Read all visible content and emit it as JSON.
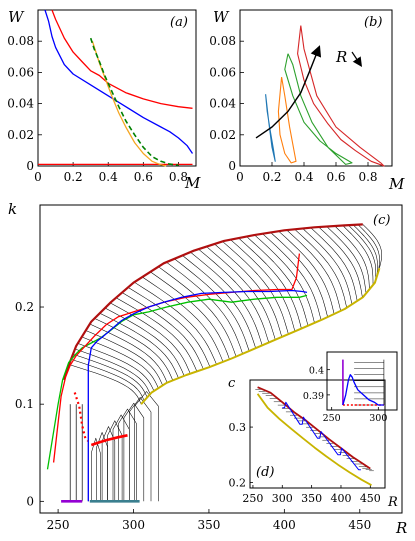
{
  "chart_data": [
    {
      "id": "a",
      "type": "line",
      "panel_label": "(a)",
      "xlabel": "M",
      "ylabel": "W",
      "xlim": [
        0,
        0.9
      ],
      "ylim": [
        0,
        0.1
      ],
      "xticks": [
        0,
        0.2,
        0.4,
        0.6,
        0.8
      ],
      "xtick_labels": [
        "0",
        "0.2",
        "0.4",
        "0.6",
        "0.8"
      ],
      "yticks": [
        0,
        0.02,
        0.04,
        0.06,
        0.08
      ],
      "ytick_labels": [
        "0",
        "0.02",
        "0.04",
        "0.06",
        "0.08"
      ],
      "series": [
        {
          "color": "#0000ff",
          "style": "solid",
          "x": [
            0.04,
            0.06,
            0.08,
            0.1,
            0.15,
            0.2,
            0.3,
            0.4,
            0.5,
            0.6,
            0.7,
            0.75,
            0.8,
            0.85,
            0.88
          ],
          "y": [
            0.1,
            0.093,
            0.083,
            0.076,
            0.065,
            0.059,
            0.052,
            0.045,
            0.038,
            0.031,
            0.025,
            0.022,
            0.018,
            0.013,
            0.008
          ]
        },
        {
          "color": "#ff0000",
          "style": "solid",
          "x": [
            0.08,
            0.1,
            0.15,
            0.2,
            0.25,
            0.3,
            0.35,
            0.4,
            0.5,
            0.6,
            0.7,
            0.8,
            0.88
          ],
          "y": [
            0.1,
            0.094,
            0.082,
            0.073,
            0.067,
            0.061,
            0.058,
            0.053,
            0.047,
            0.043,
            0.04,
            0.038,
            0.037
          ]
        },
        {
          "color": "#ff0000",
          "style": "solid",
          "x": [
            0,
            0.88
          ],
          "y": [
            0.001,
            0.001
          ]
        },
        {
          "color": "#f5a623",
          "style": "solid",
          "x": [
            0.31,
            0.33,
            0.35,
            0.38,
            0.42,
            0.46,
            0.5,
            0.55,
            0.6,
            0.65,
            0.7,
            0.73
          ],
          "y": [
            0.08,
            0.073,
            0.066,
            0.057,
            0.045,
            0.034,
            0.025,
            0.015,
            0.008,
            0.003,
            0.0008,
            0.0
          ]
        },
        {
          "color": "#008000",
          "style": "dashed",
          "x": [
            0.3,
            0.32,
            0.35,
            0.38,
            0.42,
            0.46,
            0.5,
            0.55,
            0.6,
            0.65,
            0.7,
            0.75,
            0.8
          ],
          "y": [
            0.082,
            0.075,
            0.067,
            0.058,
            0.048,
            0.038,
            0.029,
            0.02,
            0.012,
            0.006,
            0.003,
            0.0012,
            0.0005
          ]
        }
      ]
    },
    {
      "id": "b",
      "type": "line",
      "panel_label": "(b)",
      "xlabel": "M",
      "ylabel": "W",
      "xlim": [
        0,
        0.95
      ],
      "ylim": [
        0,
        0.1
      ],
      "xticks": [
        0,
        0.2,
        0.4,
        0.6,
        0.8
      ],
      "xtick_labels": [
        "0",
        "0.2",
        "0.4",
        "0.6",
        "0.8"
      ],
      "yticks": [
        0,
        0.02,
        0.04,
        0.06,
        0.08
      ],
      "ytick_labels": [
        "0",
        "0.02",
        "0.04",
        "0.06",
        "0.08"
      ],
      "annotation": "R",
      "series": [
        {
          "color": "#1f77b4",
          "x": [
            0.16,
            0.17,
            0.19,
            0.21,
            0.22,
            0.2,
            0.18,
            0.16
          ],
          "y": [
            0.046,
            0.035,
            0.022,
            0.01,
            0.003,
            0.012,
            0.028,
            0.046
          ]
        },
        {
          "color": "#ff7f0e",
          "x": [
            0.26,
            0.24,
            0.25,
            0.28,
            0.32,
            0.35,
            0.31,
            0.28,
            0.26
          ],
          "y": [
            0.057,
            0.035,
            0.02,
            0.008,
            0.002,
            0.003,
            0.025,
            0.045,
            0.057
          ]
        },
        {
          "color": "#2ca02c",
          "x": [
            0.3,
            0.28,
            0.33,
            0.4,
            0.5,
            0.6,
            0.7,
            0.66,
            0.55,
            0.45,
            0.38,
            0.33,
            0.3
          ],
          "y": [
            0.072,
            0.062,
            0.045,
            0.028,
            0.016,
            0.008,
            0.002,
            0.001,
            0.012,
            0.028,
            0.045,
            0.065,
            0.072
          ]
        },
        {
          "color": "#d62728",
          "x": [
            0.38,
            0.36,
            0.4,
            0.46,
            0.55,
            0.63,
            0.72,
            0.82,
            0.9,
            0.88,
            0.75,
            0.6,
            0.48,
            0.4,
            0.38
          ],
          "y": [
            0.09,
            0.072,
            0.055,
            0.04,
            0.027,
            0.017,
            0.01,
            0.003,
            0.0,
            0.002,
            0.012,
            0.025,
            0.045,
            0.075,
            0.09
          ]
        },
        {
          "color": "#000000",
          "x": [
            0.1,
            0.2,
            0.3,
            0.38,
            0.44,
            0.49
          ],
          "y": [
            0.018,
            0.025,
            0.035,
            0.047,
            0.062,
            0.075
          ]
        }
      ]
    },
    {
      "id": "c",
      "type": "line",
      "panel_label": "(c)",
      "xlabel": "R",
      "ylabel": "k",
      "xlim": [
        238,
        478
      ],
      "ylim": [
        -0.012,
        0.305
      ],
      "xticks": [
        250,
        300,
        350,
        400,
        450
      ],
      "xtick_labels": [
        "250",
        "300",
        "350",
        "400",
        "450"
      ],
      "yticks": [
        0,
        0.1,
        0.2
      ],
      "ytick_labels": [
        "0",
        "0.1",
        "0.2"
      ],
      "boundary_upper": {
        "color": "#b01010",
        "x": [
          254,
          257,
          262,
          272,
          285,
          300,
          320,
          340,
          360,
          380,
          400,
          420,
          440,
          452
        ],
        "y": [
          0.125,
          0.14,
          0.16,
          0.185,
          0.205,
          0.225,
          0.245,
          0.258,
          0.268,
          0.274,
          0.279,
          0.282,
          0.284,
          0.285
        ]
      },
      "boundary_lower": {
        "color": "#c8b400",
        "x": [
          305,
          312,
          322,
          335,
          350,
          365,
          380,
          395,
          410,
          425,
          440,
          452,
          460,
          463
        ],
        "y": [
          0.1,
          0.112,
          0.122,
          0.13,
          0.138,
          0.147,
          0.157,
          0.167,
          0.177,
          0.187,
          0.198,
          0.21,
          0.225,
          0.24
        ]
      },
      "red_bold": {
        "color": "#ff0000",
        "x": [
          272,
          276,
          282,
          290,
          296
        ],
        "y": [
          0.058,
          0.06,
          0.063,
          0.066,
          0.068
        ]
      },
      "red_dotted": {
        "color": "#ff0000",
        "x": [
          261,
          264,
          266,
          268,
          270
        ],
        "y": [
          0.112,
          0.098,
          0.078,
          0.065,
          0.062
        ]
      },
      "bottom_segments": [
        {
          "color": "#9400d3",
          "x": [
            252,
            266
          ],
          "y": [
            0.0,
            0.0
          ]
        },
        {
          "color": "#3a7f8f",
          "x": [
            271,
            304
          ],
          "y": [
            0.0,
            0.0
          ]
        }
      ],
      "paths": [
        {
          "color": "#00c000",
          "x": [
            243,
            250,
            253,
            257,
            262,
            266,
            272,
            278,
            284,
            292,
            300,
            310,
            322,
            336,
            350,
            365,
            380,
            395,
            410,
            415
          ],
          "y": [
            0.033,
            0.1,
            0.125,
            0.143,
            0.152,
            0.158,
            0.163,
            0.168,
            0.175,
            0.185,
            0.192,
            0.195,
            0.2,
            0.205,
            0.208,
            0.205,
            0.208,
            0.21,
            0.21,
            0.212
          ]
        },
        {
          "color": "#ff0000",
          "x": [
            247,
            252,
            255,
            258,
            262,
            268,
            274,
            282,
            290,
            300,
            310,
            320,
            335,
            350,
            365,
            380,
            395,
            405,
            408,
            410
          ],
          "y": [
            0.04,
            0.108,
            0.128,
            0.14,
            0.15,
            0.16,
            0.17,
            0.182,
            0.19,
            0.195,
            0.2,
            0.205,
            0.21,
            0.213,
            0.215,
            0.217,
            0.218,
            0.218,
            0.23,
            0.255
          ]
        },
        {
          "color": "#0000ff",
          "x": [
            270,
            270,
            272,
            276,
            280,
            286,
            292,
            300,
            310,
            320,
            332,
            345,
            360,
            375,
            390,
            405,
            412,
            415
          ],
          "y": [
            0.0,
            0.14,
            0.158,
            0.165,
            0.17,
            0.178,
            0.186,
            0.193,
            0.2,
            0.205,
            0.21,
            0.214,
            0.215,
            0.216,
            0.216,
            0.217,
            0.216,
            0.215
          ]
        }
      ]
    },
    {
      "id": "d",
      "type": "line",
      "panel_label": "(d)",
      "xlabel": "R",
      "ylabel": "c",
      "xlim": [
        245,
        475
      ],
      "ylim": [
        0.19,
        0.385
      ],
      "xticks": [
        250,
        300,
        350,
        400,
        450
      ],
      "xtick_labels": [
        "250",
        "300",
        "350",
        "400",
        "450"
      ],
      "yticks": [
        0.2,
        0.3
      ],
      "ytick_labels": [
        "0.2",
        "0.3"
      ],
      "band_upper": {
        "color": "#b01010",
        "x": [
          258,
          280,
          300,
          320,
          340,
          360,
          380,
          400,
          420,
          440,
          450
        ],
        "y": [
          0.372,
          0.362,
          0.345,
          0.327,
          0.312,
          0.295,
          0.278,
          0.262,
          0.246,
          0.232,
          0.225
        ]
      },
      "band_lower": {
        "color": "#c8b400",
        "x": [
          258,
          275,
          295,
          315,
          335,
          355,
          375,
          395,
          415,
          435,
          452
        ],
        "y": [
          0.36,
          0.335,
          0.315,
          0.297,
          0.28,
          0.263,
          0.247,
          0.232,
          0.218,
          0.205,
          0.195
        ]
      }
    },
    {
      "id": "d-inset",
      "type": "line",
      "xlim": [
        245,
        320
      ],
      "ylim": [
        0.384,
        0.407
      ],
      "xticks": [
        250,
        300
      ],
      "xtick_labels": [
        "250",
        "300"
      ],
      "yticks": [
        0.39,
        0.4
      ],
      "ytick_labels": [
        "0.39",
        "0.4"
      ],
      "curve": {
        "color": "#0000ff",
        "x": [
          262,
          265,
          268,
          270,
          272,
          274,
          278,
          284,
          290,
          296,
          300,
          306
        ],
        "y": [
          0.386,
          0.39,
          0.396,
          0.398,
          0.397,
          0.395,
          0.392,
          0.39,
          0.388,
          0.387,
          0.386,
          0.386
        ]
      },
      "purple": {
        "color": "#9400d3",
        "x": [
          262,
          262
        ],
        "y": [
          0.386,
          0.404
        ]
      },
      "red_dotted": {
        "color": "#ff0000",
        "x": [
          262,
          306
        ],
        "y": [
          0.386,
          0.386
        ]
      }
    }
  ]
}
